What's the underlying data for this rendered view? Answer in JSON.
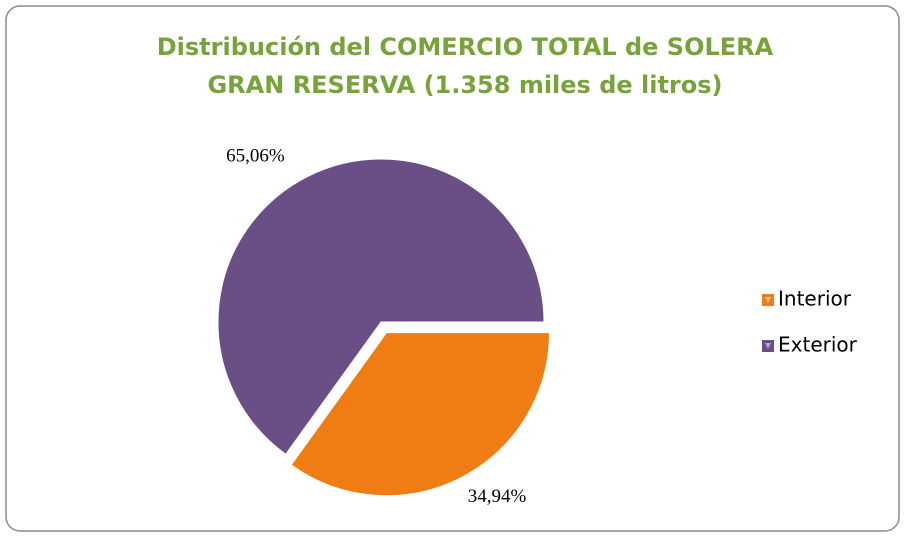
{
  "chart_data": {
    "type": "pie",
    "title": [
      "Distribución del COMERCIO TOTAL de SOLERA",
      "GRAN RESERVA (1.358 miles de litros)"
    ],
    "categories": [
      "Interior",
      "Exterior"
    ],
    "values": [
      34.94,
      65.06
    ],
    "value_labels": [
      "34,94%",
      "65,06%"
    ],
    "colors": [
      "#f07c14",
      "#6a4f87"
    ],
    "exploded": [
      true,
      false
    ],
    "legend": "right"
  }
}
